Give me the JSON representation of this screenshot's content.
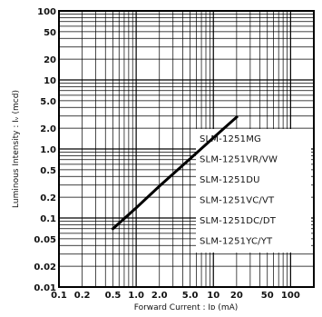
{
  "chart_data": {
    "type": "line",
    "xlabel": "Forward Current : Iᴅ (mA)",
    "ylabel": "Luminous Intensity : Iᵥ (mcd)",
    "x_scale": "log",
    "y_scale": "log",
    "xlim": [
      0.1,
      200
    ],
    "ylim": [
      0.01,
      100
    ],
    "grid": true,
    "legend_position": "right",
    "x_tick_labels": [
      {
        "value": 0.1,
        "text": "0.1"
      },
      {
        "value": 0.2,
        "text": "0.2"
      },
      {
        "value": 0.5,
        "text": "0.5"
      },
      {
        "value": 1,
        "text": "1.0"
      },
      {
        "value": 2,
        "text": "2.0"
      },
      {
        "value": 5,
        "text": "5.0"
      },
      {
        "value": 10,
        "text": "10"
      },
      {
        "value": 20,
        "text": "20"
      },
      {
        "value": 50,
        "text": "50"
      },
      {
        "value": 100,
        "text": "100"
      }
    ],
    "y_tick_labels": [
      {
        "value": 100,
        "text": "100"
      },
      {
        "value": 50,
        "text": "50"
      },
      {
        "value": 20,
        "text": "20"
      },
      {
        "value": 10,
        "text": "10"
      },
      {
        "value": 5,
        "text": "5.0"
      },
      {
        "value": 2,
        "text": "2.0"
      },
      {
        "value": 1,
        "text": "1.0"
      },
      {
        "value": 0.5,
        "text": "0.5"
      },
      {
        "value": 0.2,
        "text": "0.2"
      },
      {
        "value": 0.1,
        "text": "0.1"
      },
      {
        "value": 0.05,
        "text": "0.05"
      },
      {
        "value": 0.02,
        "text": "0.02"
      },
      {
        "value": 0.01,
        "text": "0.01"
      }
    ],
    "series": [
      {
        "x": [
          0.5,
          1,
          2,
          5,
          10,
          20
        ],
        "y": [
          0.07,
          0.14,
          0.29,
          0.72,
          1.45,
          2.9
        ],
        "color": "#000000"
      }
    ],
    "legend": [
      "SLM-1251MG",
      "SLM-1251VR/VW",
      "SLM-1251DU",
      "SLM-1251VC/VT",
      "SLM-1251DC/DT",
      "SLM-1251YC/YT"
    ]
  }
}
